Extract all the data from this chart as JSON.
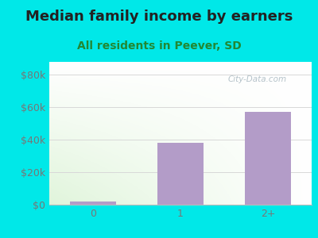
{
  "title": "Median family income by earners",
  "subtitle": "All residents in Peever, SD",
  "categories": [
    "0",
    "1",
    "2+"
  ],
  "values": [
    2000,
    38000,
    57000
  ],
  "bar_color": "#b39cc8",
  "background_color": "#00e8e8",
  "plot_bg_color_topleft": "#e8f5e4",
  "plot_bg_color_topright": "#f5f8f2",
  "plot_bg_color_bottomleft": "#d0ecc8",
  "plot_bg_color_bottomright": "#ffffff",
  "ylabel_ticks": [
    0,
    20000,
    40000,
    60000,
    80000
  ],
  "ylabel_labels": [
    "$0",
    "$20k",
    "$40k",
    "$60k",
    "$80k"
  ],
  "ylim": [
    0,
    88000
  ],
  "title_fontsize": 13,
  "subtitle_fontsize": 10,
  "tick_fontsize": 9,
  "title_color": "#222222",
  "subtitle_color": "#228833",
  "watermark_text": "City-Data.com",
  "watermark_color": "#a8b8c0",
  "grid_color": "#d8d8d8",
  "tick_color": "#777777"
}
